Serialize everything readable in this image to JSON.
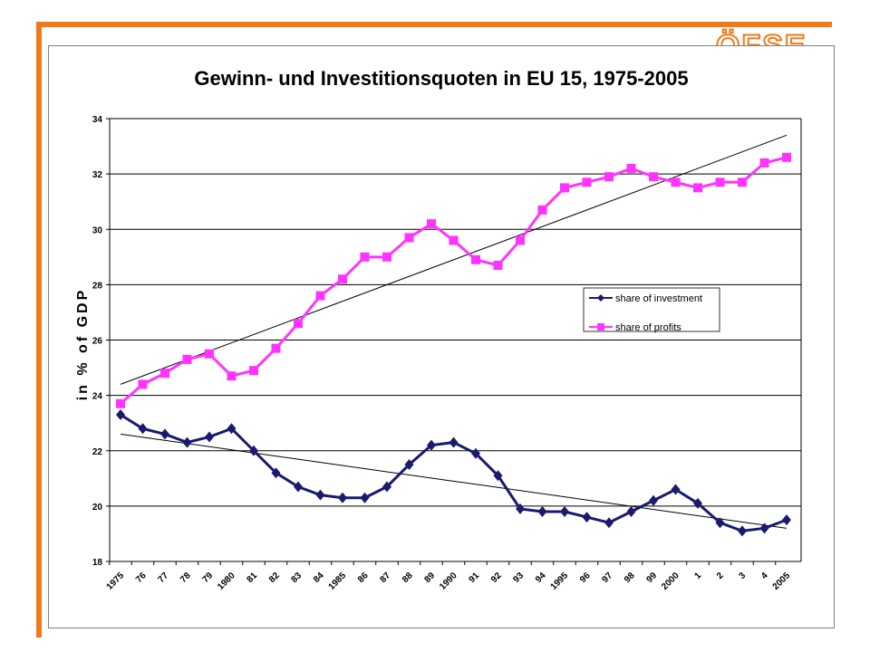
{
  "logo": {
    "text": "ÖFSE"
  },
  "chart_data": {
    "type": "line",
    "title": "Gewinn- und Investitionsquoten in EU 15, 1975-2005",
    "xlabel": "",
    "ylabel": "in % of GDP",
    "ylim": [
      18,
      34
    ],
    "yticks": [
      "18",
      "20",
      "22",
      "24",
      "26",
      "28",
      "30",
      "32",
      "34"
    ],
    "grid": true,
    "legend_position": "right",
    "x_tick_labels": [
      "1975",
      "76",
      "77",
      "78",
      "79",
      "1980",
      "81",
      "82",
      "83",
      "84",
      "1985",
      "86",
      "87",
      "88",
      "89",
      "1990",
      "91",
      "92",
      "93",
      "94",
      "1995",
      "96",
      "97",
      "98",
      "99",
      "2000",
      "1",
      "2",
      "3",
      "4",
      "2005"
    ],
    "x": [
      1975,
      1976,
      1977,
      1978,
      1979,
      1980,
      1981,
      1982,
      1983,
      1984,
      1985,
      1986,
      1987,
      1988,
      1989,
      1990,
      1991,
      1992,
      1993,
      1994,
      1995,
      1996,
      1997,
      1998,
      1999,
      2000,
      2001,
      2002,
      2003,
      2004,
      2005
    ],
    "series": [
      {
        "name": "share of investment",
        "color": "#1a1a6e",
        "marker": "diamond",
        "values": [
          23.3,
          22.8,
          22.6,
          22.3,
          22.5,
          22.8,
          22.0,
          21.2,
          20.7,
          20.4,
          20.3,
          20.3,
          20.7,
          21.5,
          22.2,
          22.3,
          21.9,
          21.1,
          19.9,
          19.8,
          19.8,
          19.6,
          19.4,
          19.8,
          20.2,
          20.6,
          20.1,
          19.4,
          19.1,
          19.2,
          19.5
        ],
        "trend": [
          22.6,
          19.2
        ]
      },
      {
        "name": "share of profits",
        "color": "#ff33ff",
        "marker": "square",
        "values": [
          23.7,
          24.4,
          24.8,
          25.3,
          25.5,
          24.7,
          24.9,
          25.7,
          26.6,
          27.6,
          28.2,
          29.0,
          29.0,
          29.7,
          30.2,
          29.6,
          28.9,
          28.7,
          29.6,
          30.7,
          31.5,
          31.7,
          31.9,
          32.2,
          31.9,
          31.7,
          31.5,
          31.7,
          31.7,
          32.4,
          32.6
        ],
        "trend": [
          24.4,
          33.4
        ]
      }
    ]
  }
}
